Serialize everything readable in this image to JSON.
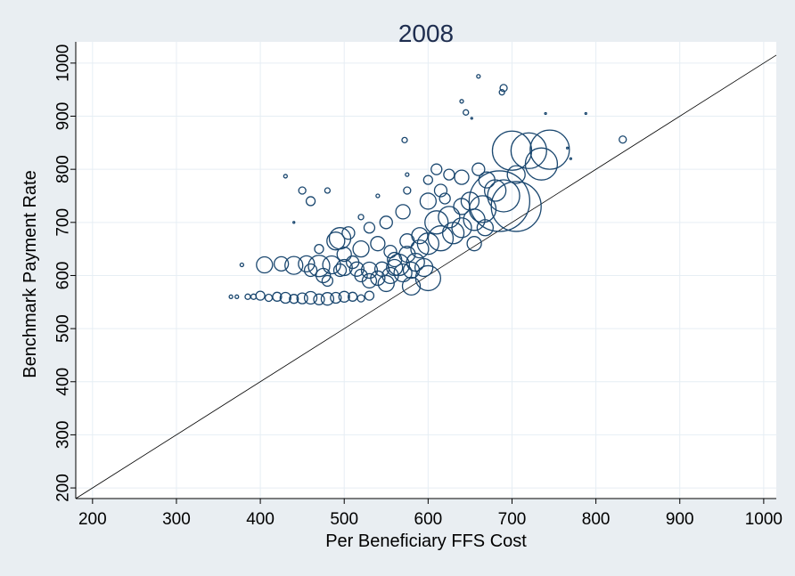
{
  "chart_data": {
    "type": "scatter",
    "title": "2008",
    "xlabel": "Per Beneficiary FFS Cost",
    "ylabel": "Benchmark Payment Rate",
    "xlim": [
      180,
      1015
    ],
    "ylim": [
      180,
      1040
    ],
    "xticks": [
      200,
      300,
      400,
      500,
      600,
      700,
      800,
      900,
      1000
    ],
    "yticks": [
      200,
      300,
      400,
      500,
      600,
      700,
      800,
      900,
      1000
    ],
    "grid": true,
    "legend": "none",
    "reference_line": {
      "from": [
        180,
        180
      ],
      "to": [
        1015,
        1015
      ]
    },
    "marker_color": "#1a476f",
    "plot_background": "#ffffff",
    "page_background": "#e9eef2",
    "grid_color": "#e6eef4",
    "series": [
      {
        "points": [
          [
            365,
            560,
            2
          ],
          [
            372,
            560,
            2
          ],
          [
            385,
            560,
            3
          ],
          [
            392,
            560,
            3
          ],
          [
            400,
            562,
            5
          ],
          [
            410,
            558,
            4
          ],
          [
            420,
            560,
            5
          ],
          [
            430,
            558,
            6
          ],
          [
            440,
            556,
            5
          ],
          [
            450,
            557,
            6
          ],
          [
            460,
            558,
            7
          ],
          [
            470,
            555,
            6
          ],
          [
            480,
            556,
            7
          ],
          [
            490,
            558,
            6
          ],
          [
            500,
            560,
            6
          ],
          [
            510,
            560,
            5
          ],
          [
            520,
            557,
            4
          ],
          [
            530,
            562,
            5
          ],
          [
            378,
            620,
            2
          ],
          [
            405,
            620,
            9
          ],
          [
            425,
            622,
            8
          ],
          [
            440,
            619,
            10
          ],
          [
            455,
            622,
            9
          ],
          [
            470,
            618,
            12
          ],
          [
            485,
            620,
            10
          ],
          [
            500,
            615,
            9
          ],
          [
            515,
            612,
            8
          ],
          [
            530,
            610,
            9
          ],
          [
            545,
            612,
            8
          ],
          [
            560,
            615,
            9
          ],
          [
            520,
            600,
            7
          ],
          [
            540,
            595,
            8
          ],
          [
            555,
            600,
            9
          ],
          [
            570,
            605,
            10
          ],
          [
            580,
            610,
            9
          ],
          [
            595,
            615,
            10
          ],
          [
            560,
            630,
            8
          ],
          [
            575,
            640,
            9
          ],
          [
            590,
            650,
            10
          ],
          [
            600,
            660,
            12
          ],
          [
            615,
            670,
            14
          ],
          [
            630,
            680,
            12
          ],
          [
            610,
            700,
            13
          ],
          [
            625,
            710,
            12
          ],
          [
            640,
            690,
            11
          ],
          [
            655,
            705,
            12
          ],
          [
            665,
            725,
            15
          ],
          [
            640,
            730,
            9
          ],
          [
            500,
            640,
            8
          ],
          [
            520,
            650,
            9
          ],
          [
            540,
            660,
            8
          ],
          [
            555,
            645,
            7
          ],
          [
            575,
            665,
            8
          ],
          [
            590,
            675,
            9
          ],
          [
            490,
            665,
            10
          ],
          [
            505,
            680,
            7
          ],
          [
            530,
            690,
            6
          ],
          [
            550,
            700,
            7
          ],
          [
            570,
            720,
            8
          ],
          [
            600,
            740,
            9
          ],
          [
            615,
            760,
            7
          ],
          [
            625,
            790,
            6
          ],
          [
            640,
            785,
            8
          ],
          [
            660,
            800,
            7
          ],
          [
            670,
            780,
            9
          ],
          [
            680,
            760,
            12
          ],
          [
            690,
            750,
            18
          ],
          [
            705,
            730,
            28
          ],
          [
            685,
            740,
            34
          ],
          [
            700,
            835,
            22
          ],
          [
            720,
            835,
            20
          ],
          [
            745,
            837,
            22
          ],
          [
            735,
            810,
            18
          ],
          [
            705,
            790,
            10
          ],
          [
            650,
            740,
            10
          ],
          [
            600,
            595,
            14
          ],
          [
            580,
            580,
            10
          ],
          [
            550,
            585,
            9
          ],
          [
            530,
            590,
            8
          ],
          [
            565,
            620,
            12
          ],
          [
            475,
            600,
            8
          ],
          [
            460,
            610,
            7
          ],
          [
            510,
            625,
            7
          ],
          [
            585,
            625,
            10
          ],
          [
            690,
            953,
            4
          ],
          [
            688,
            945,
            3
          ],
          [
            640,
            928,
            2
          ],
          [
            645,
            907,
            3
          ],
          [
            652,
            896,
            1
          ],
          [
            660,
            975,
            2
          ],
          [
            832,
            856,
            4
          ],
          [
            572,
            855,
            3
          ],
          [
            740,
            905,
            1
          ],
          [
            788,
            905,
            1
          ],
          [
            766,
            840,
            1
          ],
          [
            770,
            820,
            1
          ],
          [
            440,
            700,
            1
          ],
          [
            430,
            787,
            2
          ],
          [
            575,
            790,
            2
          ],
          [
            460,
            740,
            5
          ],
          [
            450,
            760,
            4
          ],
          [
            610,
            800,
            6
          ],
          [
            470,
            650,
            5
          ],
          [
            495,
            670,
            12
          ],
          [
            540,
            750,
            2
          ],
          [
            520,
            710,
            3
          ],
          [
            480,
            760,
            3
          ],
          [
            575,
            760,
            4
          ],
          [
            600,
            780,
            5
          ],
          [
            480,
            590,
            6
          ],
          [
            495,
            610,
            7
          ],
          [
            620,
            745,
            6
          ],
          [
            655,
            660,
            8
          ],
          [
            668,
            690,
            9
          ]
        ]
      }
    ]
  }
}
